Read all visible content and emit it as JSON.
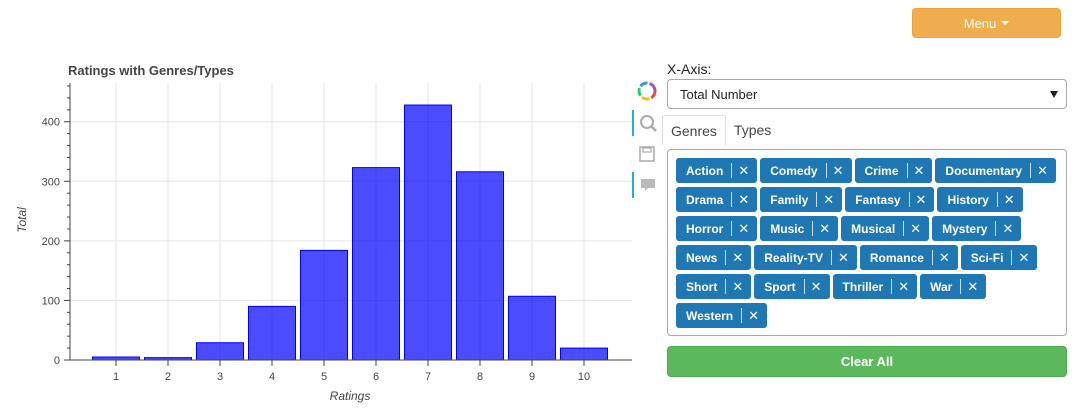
{
  "menu": {
    "label": "Menu"
  },
  "chart_data": {
    "type": "bar",
    "title": "Ratings with Genres/Types",
    "xlabel": "Ratings",
    "ylabel": "Total",
    "categories": [
      "1",
      "2",
      "3",
      "4",
      "5",
      "6",
      "7",
      "8",
      "9",
      "10"
    ],
    "values": [
      5,
      4,
      29,
      90,
      184,
      323,
      428,
      316,
      107,
      20
    ],
    "ylim": [
      0,
      465
    ],
    "yticks": [
      0,
      100,
      200,
      300,
      400
    ],
    "grid": true,
    "bar_color": "#0000ff"
  },
  "controls": {
    "xaxis_label": "X-Axis:",
    "xaxis_value": "Total Number",
    "tabs": [
      "Genres",
      "Types"
    ],
    "active_tab": 0,
    "tags": [
      "Action",
      "Comedy",
      "Crime",
      "Documentary",
      "Drama",
      "Family",
      "Fantasy",
      "History",
      "Horror",
      "Music",
      "Musical",
      "Mystery",
      "News",
      "Reality-TV",
      "Romance",
      "Sci-Fi",
      "Short",
      "Sport",
      "Thriller",
      "War",
      "Western"
    ],
    "tag_color": "#1f77b4",
    "clear_label": "Clear All",
    "clear_color": "#5cb85c"
  }
}
